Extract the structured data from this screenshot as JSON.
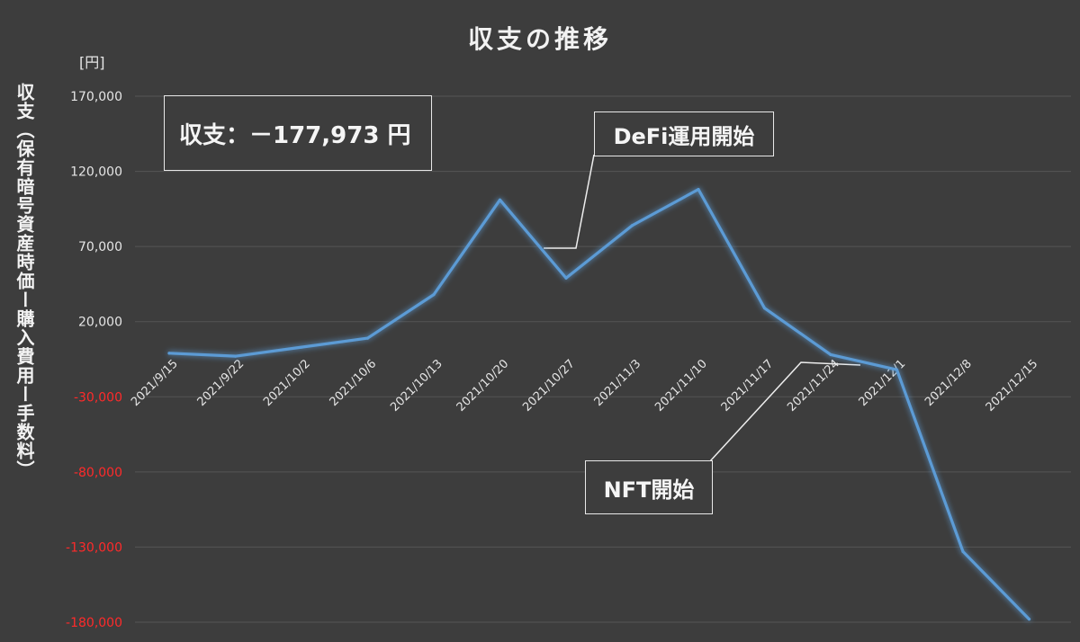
{
  "chart_data": {
    "type": "line",
    "title": "収支の推移",
    "unit": "[円]",
    "ylabel": "収支（保有暗号資産時価ー購入費用ー手数料）",
    "ylim": [
      -180000,
      170000
    ],
    "yticks": [
      {
        "value": 170000,
        "label": "170,000"
      },
      {
        "value": 120000,
        "label": "120,000"
      },
      {
        "value": 70000,
        "label": "70,000"
      },
      {
        "value": 20000,
        "label": "20,000"
      },
      {
        "value": -30000,
        "label": "-30,000"
      },
      {
        "value": -80000,
        "label": "-80,000"
      },
      {
        "value": -130000,
        "label": "-130,000"
      },
      {
        "value": -180000,
        "label": "-180,000"
      }
    ],
    "grid": true,
    "positive_tick_color": "#e6e6e6",
    "negative_tick_color": "#ff2a2a",
    "line_color": "#5b9bd5",
    "categories": [
      "2021/9/15",
      "2021/9/22",
      "2021/10/2",
      "2021/10/6",
      "2021/10/13",
      "2021/10/20",
      "2021/10/27",
      "2021/11/3",
      "2021/11/10",
      "2021/11/17",
      "2021/11/24",
      "2021/12/1",
      "2021/12/8",
      "2021/12/15"
    ],
    "series": [
      {
        "values": [
          -1000,
          -3000,
          3000,
          9000,
          38000,
          101000,
          49000,
          84000,
          108000,
          29000,
          -2000,
          -12000,
          -133000,
          -177973
        ]
      }
    ],
    "annotations": {
      "summary": "収支：－177,973 円",
      "defi": "DeFi運用開始",
      "nft": "NFT開始"
    }
  }
}
